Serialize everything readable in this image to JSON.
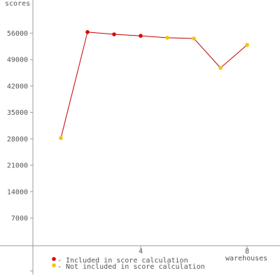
{
  "chart_data": {
    "type": "line",
    "y_label": "scores",
    "x_label": "warehouses",
    "x": [
      1,
      2,
      3,
      4,
      5,
      6,
      7,
      8
    ],
    "line_color": "#c00000",
    "series": [
      {
        "name": "Included in score calculation",
        "color": "#dd0000",
        "values": [
          null,
          56300,
          55700,
          55300,
          null,
          null,
          null,
          null
        ]
      },
      {
        "name": "Not included in score calculation",
        "color": "#f5c400",
        "values": [
          28200,
          null,
          null,
          null,
          54800,
          54600,
          46800,
          52900
        ]
      }
    ],
    "xlim": [
      0,
      9.2
    ],
    "ylim": [
      -7000,
      63000
    ],
    "xticks": [
      4,
      8
    ],
    "yticks": [
      7000,
      14000,
      21000,
      28000,
      35000,
      42000,
      49000,
      56000
    ]
  }
}
